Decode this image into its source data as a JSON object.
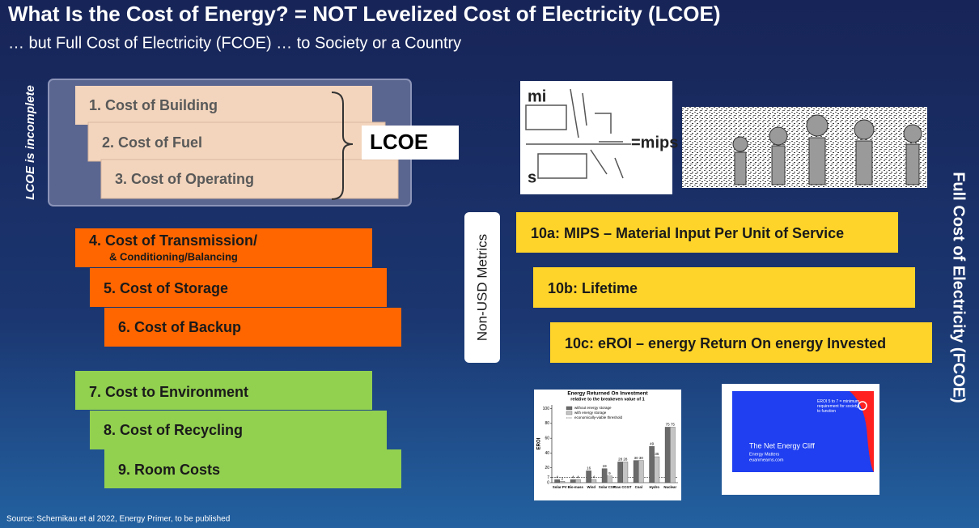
{
  "header": {
    "title": "What Is the Cost of Energy? = NOT Levelized Cost of Electricity (LCOE)",
    "subtitle": "… but Full Cost of Electricity (FCOE) … to Society or a Country"
  },
  "lcoe_side_label": "LCOE is incomplete",
  "lcoe_items": [
    "1. Cost of Building",
    "2. Cost of Fuel",
    "3. Cost of Operating"
  ],
  "lcoe_label": "LCOE",
  "transmission": {
    "main": "4. Cost of Transmission/",
    "sub": "& Conditioning/Balancing"
  },
  "orange_items": [
    "5. Cost of Storage",
    "6. Cost of Backup"
  ],
  "green_items": [
    "7. Cost to Environment",
    "8. Cost of Recycling",
    "9. Room Costs"
  ],
  "non_usd_label": "Non-USD Metrics",
  "metrics": [
    "10a: MIPS – Material Input Per Unit of Service",
    "10b: Lifetime",
    "10c: eROI – energy Return On energy Invested"
  ],
  "fcoe_label": "Full Cost of Electricity (FCOE)",
  "mips_image": {
    "top": "mi",
    "bottom": "s",
    "right": "=mips"
  },
  "eroi_chart": {
    "type": "bar",
    "title": "Energy Returned On Investment",
    "subtitle": "relative to the breakeven value of 1",
    "ylabel": "EROI",
    "categories": [
      "Solar PV",
      "Bio-mass",
      "Wind",
      "Solar CSP",
      "Gas CCGT",
      "Coal",
      "Hydro",
      "Nuclear"
    ],
    "series": [
      {
        "name": "without energy storage",
        "color": "#6a6a6a",
        "values": [
          4,
          4,
          16,
          19,
          28,
          30,
          49,
          75
        ]
      },
      {
        "name": "with energy storage",
        "color": "#c4c4c4",
        "values": [
          2,
          4,
          4,
          9,
          28,
          30,
          35,
          75
        ]
      }
    ],
    "threshold": 7,
    "threshold_label": "economically-viable threshold",
    "ylim": [
      0,
      105
    ],
    "yticks": [
      0,
      7,
      20,
      40,
      60,
      80,
      100
    ]
  },
  "cliff_chart": {
    "title": "The Net Energy Cliff",
    "source": "Energy Matters",
    "site": "euanmearns.com",
    "note": "EROI 5 to 7 = minimum requirement for society to function"
  },
  "source": "Source: Schernikau et al 2022, Energy Primer, to be published"
}
